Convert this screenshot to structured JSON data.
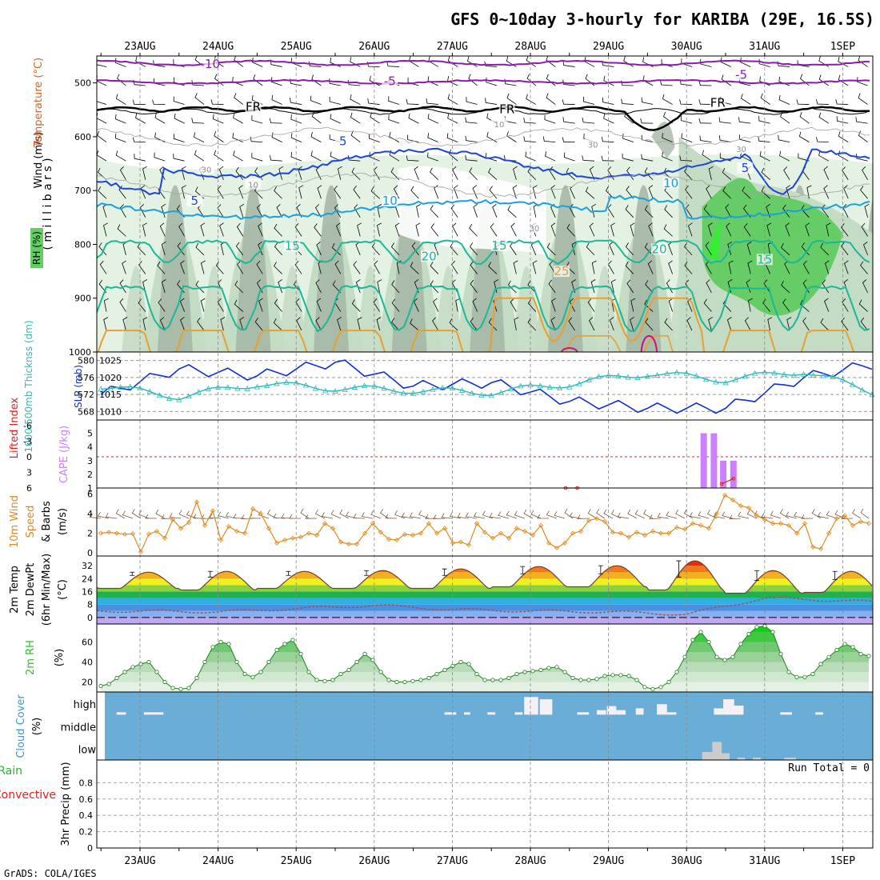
{
  "header": {
    "title": "GFS 0~10day 3-hourly for KARIBA (29E, 16.5S)",
    "footer": "GrADS: COLA/IGES"
  },
  "colors": {
    "rh_light": "#e3f2e3",
    "rh_mid": "#c4dcc4",
    "rh_dark": "#a6b8a6",
    "rh_green": "#66cc66",
    "rh_bright": "#33ee33",
    "temp_violet": "#8a1ab0",
    "temp_black": "#000000",
    "temp_blue": "#1c44d8",
    "temp_sky": "#1aa0e0",
    "temp_teal": "#1ab898",
    "temp_orange": "#e8a030",
    "temp_magenta": "#d0107a",
    "slp": "#1030d0",
    "thickness": "#30b8b8",
    "cape": "#cc80ff",
    "lifted": "#e02020",
    "wind10": "#e08a20",
    "dewpt": "#a05050",
    "cloud_bg": "#6aaed8",
    "rh2m": "#30c030"
  },
  "chart_data": {
    "type": "meteogram",
    "date_labels": [
      "23AUG",
      "24AUG",
      "25AUG",
      "26AUG",
      "27AUG",
      "28AUG",
      "29AUG",
      "30AUG",
      "31AUG",
      "1SEP"
    ],
    "profile": {
      "ylabel": "( m i l l i b a r s )",
      "legend_rh": "RH (%)",
      "legend_temp": "Temperature (°C)",
      "legend_wind": "Wind (m/s)",
      "yticks": [
        "500",
        "600",
        "700",
        "800",
        "900",
        "1000"
      ],
      "contour_labels": [
        {
          "text": "-10",
          "color": "#8a1ab0",
          "day": 0.9,
          "hpa": 468
        },
        {
          "text": "-5",
          "color": "#8a1ab0",
          "day": 3.2,
          "hpa": 500
        },
        {
          "text": "-5",
          "color": "#8a1ab0",
          "day": 7.7,
          "hpa": 488
        },
        {
          "text": "FR",
          "color": "#000000",
          "day": 1.45,
          "hpa": 547
        },
        {
          "text": "FR",
          "color": "#000000",
          "day": 4.7,
          "hpa": 552
        },
        {
          "text": "FR",
          "color": "#000000",
          "day": 7.4,
          "hpa": 540
        },
        {
          "text": "5",
          "color": "#1c44d8",
          "day": 2.6,
          "hpa": 611
        },
        {
          "text": "5",
          "color": "#1c44d8",
          "day": 0.7,
          "hpa": 722
        },
        {
          "text": "5",
          "color": "#1c44d8",
          "day": 7.75,
          "hpa": 661
        },
        {
          "text": "10",
          "color": "#1aa0e0",
          "day": 3.2,
          "hpa": 722
        },
        {
          "text": "10",
          "color": "#1aa0e0",
          "day": 6.8,
          "hpa": 689
        },
        {
          "text": "15",
          "color": "#1ab898",
          "day": 1.95,
          "hpa": 806
        },
        {
          "text": "15",
          "color": "#1ab898",
          "day": 4.6,
          "hpa": 805
        },
        {
          "text": "15",
          "color": "#1ab898",
          "day": 8.0,
          "hpa": 831
        },
        {
          "text": "20",
          "color": "#1ab898",
          "day": 3.7,
          "hpa": 825
        },
        {
          "text": "20",
          "color": "#1ab898",
          "day": 6.65,
          "hpa": 812
        },
        {
          "text": "25",
          "color": "#e8a030",
          "day": 5.4,
          "hpa": 853
        },
        {
          "text": "30",
          "color": "#909090",
          "day": 0.85,
          "hpa": 662
        },
        {
          "text": "10",
          "color": "#909090",
          "day": 1.45,
          "hpa": 690
        },
        {
          "text": "30",
          "color": "#909090",
          "day": 5.05,
          "hpa": 771
        },
        {
          "text": "10",
          "color": "#909090",
          "day": 4.6,
          "hpa": 578
        },
        {
          "text": "30",
          "color": "#909090",
          "day": 5.8,
          "hpa": 616
        },
        {
          "text": "30",
          "color": "#909090",
          "day": 7.7,
          "hpa": 624
        }
      ]
    },
    "slp_panel": {
      "ylabel_slp": "SLP (mb)",
      "ylabel_thk": "1000-500mb Thicknss (dm)",
      "slp_ticks": [
        "1010",
        "1015",
        "1020",
        "1025"
      ],
      "thk_ticks": [
        "568",
        "572",
        "576",
        "580"
      ],
      "slp_range": [
        1007.5,
        1027.5
      ],
      "thk_range": [
        566,
        582
      ],
      "slp_daily": [
        1015,
        1022.5,
        1020.5,
        1024.5,
        1017.5,
        1018.5,
        1013,
        1011,
        1011,
        1020,
        1024.5,
        1018,
        1024
      ],
      "thk_daily": [
        574,
        571.5,
        574.5,
        573.5,
        573,
        572.5,
        574.5,
        577,
        575.5,
        577.5,
        572,
        569,
        567.5
      ]
    },
    "cape_panel": {
      "ylabel_li": "Lifted Index",
      "ylabel_cape": "CAPE (J/kg)",
      "li_ticks": [
        "6",
        "3",
        "0",
        "-3",
        "-6"
      ],
      "cape_ticks": [
        "1",
        "2",
        "3",
        "4",
        "5"
      ],
      "cape_bars": [
        {
          "day": 7.22,
          "value": 5.0
        },
        {
          "day": 7.35,
          "value": 5.0
        },
        {
          "day": 7.47,
          "value": 3.0
        },
        {
          "day": 7.6,
          "value": 3.0
        }
      ],
      "li_points": [
        {
          "day": 5.45,
          "value": 6.0
        },
        {
          "day": 5.6,
          "value": 6.0
        },
        {
          "day": 7.45,
          "value": 5.2
        },
        {
          "day": 7.6,
          "value": 4.2
        }
      ]
    },
    "wind10_panel": {
      "ylabel_a": "10m Wind",
      "ylabel_b": "Speed",
      "ylabel_c": "& Barbs",
      "ylabel_unit": "(m/s)",
      "yticks": [
        "0",
        "2",
        "4",
        "6"
      ],
      "ylim": [
        0,
        6.3
      ],
      "speed": [
        2.0,
        2.1,
        2.0,
        1.9,
        1.95,
        0.1,
        1.9,
        2.2,
        1.5,
        3.4,
        2.5,
        3.1,
        5.2,
        2.8,
        4.3,
        1.3,
        2.7,
        2.2,
        2.0,
        4.5,
        4.0,
        2.5,
        1.0,
        1.3,
        1.5,
        1.6,
        2.0,
        1.8,
        3.0,
        2.5,
        1.1,
        0.9,
        0.9,
        2.0,
        3.0,
        2.1,
        1.4,
        1.3,
        1.9,
        1.8,
        2.0,
        3.0,
        2.0,
        2.5,
        1.0,
        1.1,
        0.8,
        3.0,
        2.1,
        1.5,
        2.0,
        1.5,
        2.5,
        2.2,
        1.8,
        2.8,
        1.0,
        0.5,
        1.0,
        2.0,
        2.2,
        3.3,
        3.5,
        3.2,
        2.1,
        2.0,
        1.6,
        2.1,
        1.8,
        2.2,
        2.0,
        2.0,
        2.6,
        2.4,
        3.0,
        2.8,
        2.5,
        4.0,
        5.9,
        5.4,
        4.8,
        4.6,
        3.8,
        3.4,
        3.0,
        3.0,
        2.8,
        2.0,
        3.0,
        0.6,
        0.4,
        2.0,
        3.5,
        3.8,
        2.8,
        3.2,
        3.0
      ]
    },
    "temp2m_panel": {
      "ylabel_a": "2m Temp",
      "ylabel_b": "2m DewPt",
      "ylabel_c": "(6hr Min/Max)",
      "ylabel_unit": "(°C)",
      "yticks": [
        "0",
        "8",
        "16",
        "24",
        "32"
      ],
      "ylim": [
        -4,
        38
      ],
      "tmin": [
        18,
        17,
        18,
        18,
        18,
        19,
        19,
        17,
        15,
        15.5
      ],
      "tmax": [
        28,
        28.5,
        28.5,
        29,
        30,
        31.5,
        32,
        35,
        29,
        28.5
      ],
      "dewpt": [
        4,
        3.5,
        5.5,
        7.5,
        5,
        4,
        3.5,
        2,
        12,
        10.5,
        8,
        9
      ]
    },
    "rh2m_panel": {
      "ylabel": "2m RH",
      "ylabel_unit": "(%)",
      "yticks": [
        "20",
        "40",
        "60"
      ],
      "ylim": [
        10,
        78
      ],
      "rh": [
        16,
        18,
        24,
        30,
        35,
        38,
        40,
        30,
        20,
        14,
        13,
        14,
        24,
        40,
        55,
        60,
        58,
        40,
        28,
        25,
        30,
        40,
        52,
        58,
        62,
        48,
        30,
        22,
        21,
        22,
        28,
        32,
        40,
        48,
        42,
        30,
        22,
        20,
        20,
        21,
        22,
        24,
        28,
        32,
        36,
        40,
        38,
        28,
        22,
        22,
        22,
        24,
        28,
        30,
        31,
        32,
        34,
        35,
        30,
        24,
        22,
        22,
        23,
        26,
        27,
        27,
        26,
        22,
        15,
        13,
        15,
        20,
        30,
        45,
        62,
        70,
        60,
        45,
        42,
        45,
        58,
        68,
        75,
        76,
        70,
        48,
        30,
        25,
        25,
        28,
        38,
        45,
        52,
        58,
        55,
        48,
        46
      ]
    },
    "cloud_panel": {
      "ylabel_a": "Cloud Cover",
      "ylabel_unit": "(%)",
      "levels": [
        "high",
        "middle",
        "low"
      ],
      "high_blocks": [
        {
          "day": 4.92,
          "width": 0.18,
          "height": 0.78
        },
        {
          "day": 5.12,
          "width": 0.16,
          "height": 0.68
        },
        {
          "day": 5.85,
          "width": 0.12,
          "height": 0.2
        },
        {
          "day": 5.98,
          "width": 0.12,
          "height": 0.38
        },
        {
          "day": 6.1,
          "width": 0.12,
          "height": 0.2
        },
        {
          "day": 6.35,
          "width": 0.1,
          "height": 0.28
        },
        {
          "day": 6.62,
          "width": 0.13,
          "height": 0.46
        },
        {
          "day": 7.35,
          "width": 0.12,
          "height": 0.28
        },
        {
          "day": 7.47,
          "width": 0.14,
          "height": 0.68
        },
        {
          "day": 7.6,
          "width": 0.13,
          "height": 0.4
        }
      ],
      "low_blocks": [
        {
          "day": 7.2,
          "width": 0.13,
          "height": 0.35
        },
        {
          "day": 7.33,
          "width": 0.12,
          "height": 0.8
        },
        {
          "day": 7.45,
          "width": 0.1,
          "height": 0.3
        }
      ]
    },
    "precip_panel": {
      "ylabel_a": "Total / Rain",
      "ylabel_b": "Convective",
      "ylabel_c": "3hr Precip (mm)",
      "yticks": [
        "0",
        "0.2",
        "0.4",
        "0.6",
        "0.8"
      ],
      "ylim": [
        0,
        1.0
      ],
      "run_total": "Run Total = 0"
    }
  }
}
